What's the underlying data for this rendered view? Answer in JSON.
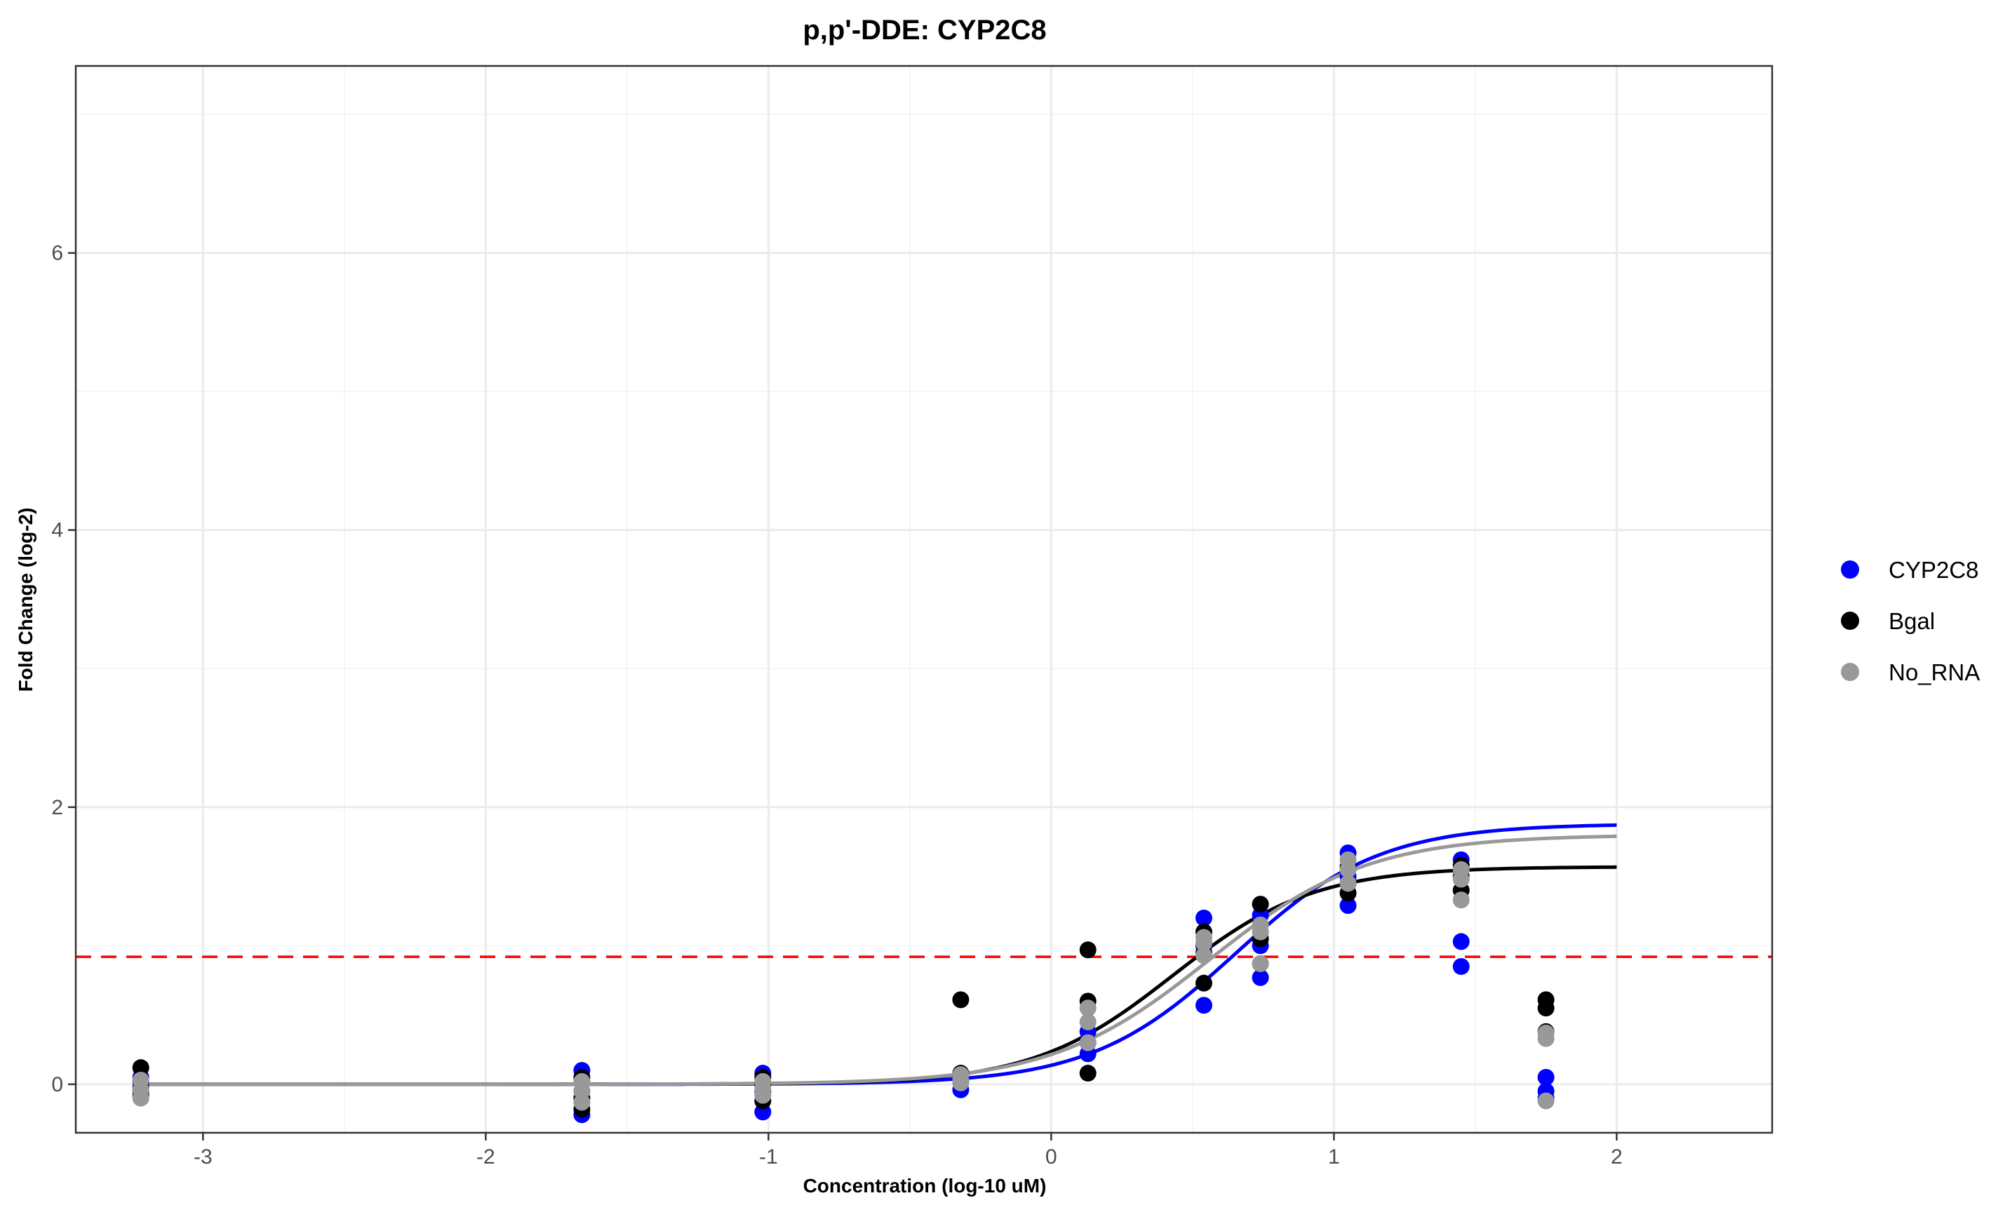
{
  "chart_data": {
    "type": "scatter",
    "title": "p,p'-DDE: CYP2C8",
    "xlabel": "Concentration (log-10 uM)",
    "ylabel": "Fold Change (log-2)",
    "xlim": [
      -3.45,
      2.55
    ],
    "ylim": [
      -0.35,
      7.35
    ],
    "x_ticks": [
      -3,
      -2,
      -1,
      0,
      1,
      2
    ],
    "y_ticks": [
      0,
      2,
      4,
      6
    ],
    "x_tick_labels": [
      "-3",
      "-2",
      "-1",
      "0",
      "1",
      "2"
    ],
    "y_tick_labels": [
      "0",
      "2",
      "4",
      "6"
    ],
    "grid": true,
    "legend_position": "right",
    "threshold": {
      "y": 0.92,
      "color": "#ff0000",
      "style": "dashed"
    },
    "series": [
      {
        "name": "CYP2C8",
        "color": "#0000ff",
        "points": [
          [
            -3.22,
            0.05
          ],
          [
            -3.22,
            -0.02
          ],
          [
            -3.22,
            -0.08
          ],
          [
            -1.66,
            0.1
          ],
          [
            -1.66,
            -0.05
          ],
          [
            -1.66,
            -0.22
          ],
          [
            -1.02,
            0.08
          ],
          [
            -1.02,
            -0.05
          ],
          [
            -1.02,
            -0.2
          ],
          [
            -0.32,
            0.07
          ],
          [
            -0.32,
            0.02
          ],
          [
            -0.32,
            -0.04
          ],
          [
            0.13,
            0.22
          ],
          [
            0.13,
            0.3
          ],
          [
            0.13,
            0.38
          ],
          [
            0.54,
            0.57
          ],
          [
            0.54,
            1.0
          ],
          [
            0.54,
            1.2
          ],
          [
            0.74,
            0.77
          ],
          [
            0.74,
            1.0
          ],
          [
            0.74,
            1.22
          ],
          [
            1.05,
            1.29
          ],
          [
            1.05,
            1.5
          ],
          [
            1.05,
            1.67
          ],
          [
            1.45,
            0.85
          ],
          [
            1.45,
            1.03
          ],
          [
            1.45,
            1.62
          ],
          [
            1.75,
            0.05
          ],
          [
            1.75,
            -0.05
          ],
          [
            1.75,
            -0.1
          ]
        ],
        "curve": {
          "bottom": 0.0,
          "top": 1.88,
          "ec50": 0.65,
          "hill": 1.7
        }
      },
      {
        "name": "Bgal",
        "color": "#000000",
        "points": [
          [
            -3.22,
            0.12
          ],
          [
            -3.22,
            0.02
          ],
          [
            -3.22,
            -0.05
          ],
          [
            -1.66,
            0.05
          ],
          [
            -1.66,
            -0.1
          ],
          [
            -1.66,
            -0.18
          ],
          [
            -1.02,
            0.05
          ],
          [
            -1.02,
            0.0
          ],
          [
            -1.02,
            -0.12
          ],
          [
            -0.32,
            0.61
          ],
          [
            -0.32,
            0.08
          ],
          [
            -0.32,
            0.03
          ],
          [
            0.13,
            0.08
          ],
          [
            0.13,
            0.6
          ],
          [
            0.13,
            0.97
          ],
          [
            0.54,
            0.73
          ],
          [
            0.54,
            0.95
          ],
          [
            0.54,
            1.1
          ],
          [
            0.74,
            1.3
          ],
          [
            0.74,
            1.05
          ],
          [
            0.74,
            0.87
          ],
          [
            1.05,
            1.38
          ],
          [
            1.05,
            1.45
          ],
          [
            1.05,
            1.57
          ],
          [
            1.45,
            1.4
          ],
          [
            1.45,
            1.5
          ],
          [
            1.45,
            1.58
          ],
          [
            1.75,
            0.38
          ],
          [
            1.75,
            0.55
          ],
          [
            1.75,
            0.61
          ]
        ],
        "curve": {
          "bottom": 0.0,
          "top": 1.57,
          "ec50": 0.43,
          "hill": 1.75
        }
      },
      {
        "name": "No_RNA",
        "color": "#999999",
        "points": [
          [
            -3.22,
            0.03
          ],
          [
            -3.22,
            -0.04
          ],
          [
            -3.22,
            -0.1
          ],
          [
            -1.66,
            0.02
          ],
          [
            -1.66,
            -0.05
          ],
          [
            -1.66,
            -0.13
          ],
          [
            -1.02,
            0.02
          ],
          [
            -1.02,
            -0.03
          ],
          [
            -1.02,
            -0.08
          ],
          [
            -0.32,
            0.07
          ],
          [
            -0.32,
            0.03
          ],
          [
            -0.32,
            0.01
          ],
          [
            0.13,
            0.3
          ],
          [
            0.13,
            0.45
          ],
          [
            0.13,
            0.55
          ],
          [
            0.54,
            0.93
          ],
          [
            0.54,
            1.02
          ],
          [
            0.54,
            1.06
          ],
          [
            0.74,
            0.87
          ],
          [
            0.74,
            1.1
          ],
          [
            0.74,
            1.15
          ],
          [
            1.05,
            1.45
          ],
          [
            1.05,
            1.55
          ],
          [
            1.05,
            1.62
          ],
          [
            1.45,
            1.33
          ],
          [
            1.45,
            1.48
          ],
          [
            1.45,
            1.55
          ],
          [
            1.75,
            0.33
          ],
          [
            1.75,
            0.37
          ],
          [
            1.75,
            -0.12
          ]
        ],
        "curve": {
          "bottom": 0.0,
          "top": 1.8,
          "ec50": 0.56,
          "hill": 1.55
        }
      }
    ]
  }
}
